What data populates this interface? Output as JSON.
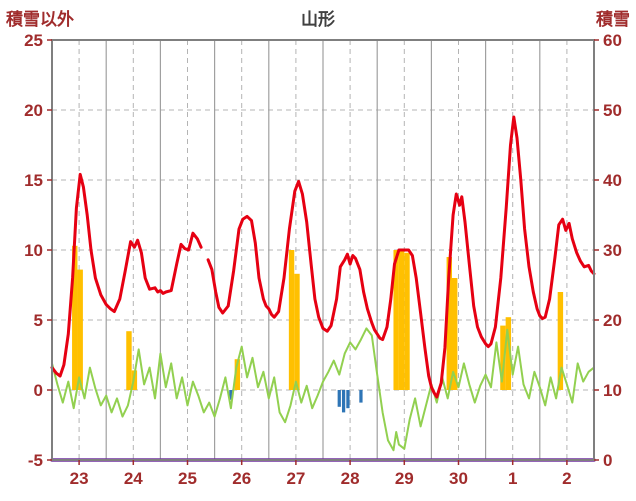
{
  "header": {
    "left_axis_title": "積雪以外",
    "title": "山形",
    "right_axis_title": "積雪"
  },
  "chart_data": {
    "type": "line",
    "title": "山形",
    "left_axis": {
      "label": "積雪以外",
      "min": -5,
      "max": 25,
      "step": 5,
      "ticks": [
        25,
        20,
        15,
        10,
        5,
        0,
        -5
      ]
    },
    "right_axis": {
      "label": "積雪",
      "min": 0,
      "max": 60,
      "step": 10,
      "ticks": [
        60,
        50,
        40,
        30,
        20,
        10,
        0
      ]
    },
    "x_axis": {
      "min": 0,
      "max": 10,
      "day_labels": [
        "23",
        "24",
        "25",
        "26",
        "27",
        "28",
        "29",
        "30",
        "1",
        "2"
      ]
    },
    "colors": {
      "axis_text": "#a02c2c",
      "title_text": "#404040",
      "border": "#7f7f7f",
      "grid_solid": "#a0a0a0",
      "grid_dashed": "#b4b4b4",
      "temperature": "#e60012",
      "wind": "#92d050",
      "sunshine": "#ffc000",
      "precipitation": "#2e75b6",
      "snow_depth": "#7030a0"
    },
    "series": [
      {
        "name": "sunshine",
        "type": "bar",
        "axis": "left",
        "color": "#ffc000",
        "bar_width_days": 0.1,
        "points": [
          [
            0.42,
            10.3
          ],
          [
            0.52,
            8.6
          ],
          [
            1.42,
            4.2
          ],
          [
            1.52,
            1.4
          ],
          [
            3.42,
            2.2
          ],
          [
            4.42,
            10.0
          ],
          [
            4.52,
            8.3
          ],
          [
            6.35,
            10.0
          ],
          [
            6.45,
            10.0
          ],
          [
            6.55,
            9.8
          ],
          [
            7.33,
            9.5
          ],
          [
            7.43,
            8.0
          ],
          [
            8.32,
            4.6
          ],
          [
            8.42,
            5.2
          ],
          [
            9.38,
            7.0
          ]
        ]
      },
      {
        "name": "precipitation",
        "type": "bar",
        "axis": "left",
        "color": "#2e75b6",
        "bar_width_days": 0.06,
        "points": [
          [
            3.3,
            -0.7
          ],
          [
            5.3,
            -1.2
          ],
          [
            5.38,
            -1.6
          ],
          [
            5.46,
            -1.3
          ],
          [
            5.7,
            -0.9
          ]
        ]
      },
      {
        "name": "wind",
        "type": "line",
        "axis": "left",
        "color": "#92d050",
        "width": 2,
        "points": [
          [
            0.0,
            1.9
          ],
          [
            0.1,
            0.4
          ],
          [
            0.2,
            -0.9
          ],
          [
            0.3,
            0.6
          ],
          [
            0.4,
            -1.3
          ],
          [
            0.5,
            0.9
          ],
          [
            0.6,
            -0.6
          ],
          [
            0.7,
            1.6
          ],
          [
            0.8,
            0.1
          ],
          [
            0.9,
            -1.1
          ],
          [
            1.0,
            -0.4
          ],
          [
            1.1,
            -1.6
          ],
          [
            1.2,
            -0.6
          ],
          [
            1.3,
            -1.9
          ],
          [
            1.4,
            -1.1
          ],
          [
            1.5,
            0.6
          ],
          [
            1.6,
            2.9
          ],
          [
            1.7,
            0.4
          ],
          [
            1.8,
            1.6
          ],
          [
            1.9,
            -0.6
          ],
          [
            2.0,
            2.6
          ],
          [
            2.1,
            0.2
          ],
          [
            2.2,
            1.9
          ],
          [
            2.3,
            -0.6
          ],
          [
            2.4,
            0.9
          ],
          [
            2.5,
            -1.1
          ],
          [
            2.6,
            0.6
          ],
          [
            2.7,
            -0.4
          ],
          [
            2.8,
            -1.6
          ],
          [
            2.9,
            -0.9
          ],
          [
            3.0,
            -1.9
          ],
          [
            3.1,
            -0.6
          ],
          [
            3.2,
            0.9
          ],
          [
            3.3,
            -1.3
          ],
          [
            3.4,
            1.6
          ],
          [
            3.5,
            3.1
          ],
          [
            3.6,
            0.9
          ],
          [
            3.7,
            2.3
          ],
          [
            3.8,
            0.2
          ],
          [
            3.9,
            1.3
          ],
          [
            4.0,
            -0.6
          ],
          [
            4.1,
            0.9
          ],
          [
            4.2,
            -1.6
          ],
          [
            4.3,
            -2.3
          ],
          [
            4.4,
            -1.1
          ],
          [
            4.5,
            0.6
          ],
          [
            4.6,
            -0.9
          ],
          [
            4.7,
            0.3
          ],
          [
            4.8,
            -1.3
          ],
          [
            4.9,
            -0.4
          ],
          [
            5.0,
            0.6
          ],
          [
            5.1,
            1.3
          ],
          [
            5.2,
            2.1
          ],
          [
            5.3,
            1.1
          ],
          [
            5.4,
            2.6
          ],
          [
            5.5,
            3.4
          ],
          [
            5.6,
            2.9
          ],
          [
            5.7,
            3.6
          ],
          [
            5.8,
            4.4
          ],
          [
            5.9,
            3.9
          ],
          [
            6.0,
            1.1
          ],
          [
            6.1,
            -1.6
          ],
          [
            6.2,
            -3.6
          ],
          [
            6.3,
            -4.3
          ],
          [
            6.35,
            -3.0
          ],
          [
            6.4,
            -3.9
          ],
          [
            6.5,
            -4.2
          ],
          [
            6.6,
            -2.1
          ],
          [
            6.7,
            -0.6
          ],
          [
            6.8,
            -2.6
          ],
          [
            6.9,
            -1.1
          ],
          [
            7.0,
            0.4
          ],
          [
            7.1,
            -0.9
          ],
          [
            7.2,
            0.9
          ],
          [
            7.3,
            -0.6
          ],
          [
            7.4,
            1.3
          ],
          [
            7.5,
            0.2
          ],
          [
            7.6,
            1.9
          ],
          [
            7.7,
            0.4
          ],
          [
            7.8,
            -0.9
          ],
          [
            7.9,
            0.3
          ],
          [
            8.0,
            1.1
          ],
          [
            8.1,
            0.2
          ],
          [
            8.2,
            3.4
          ],
          [
            8.3,
            0.6
          ],
          [
            8.4,
            4.3
          ],
          [
            8.5,
            1.1
          ],
          [
            8.6,
            3.1
          ],
          [
            8.7,
            0.4
          ],
          [
            8.8,
            -0.6
          ],
          [
            8.9,
            1.3
          ],
          [
            9.0,
            0.2
          ],
          [
            9.1,
            -1.1
          ],
          [
            9.2,
            0.9
          ],
          [
            9.3,
            -0.6
          ],
          [
            9.4,
            1.6
          ],
          [
            9.5,
            0.4
          ],
          [
            9.6,
            -0.9
          ],
          [
            9.7,
            1.9
          ],
          [
            9.8,
            0.6
          ],
          [
            9.9,
            1.3
          ],
          [
            10.0,
            1.6
          ]
        ]
      },
      {
        "name": "snow_depth",
        "type": "line",
        "axis": "right",
        "color": "#7030a0",
        "width": 3.5,
        "points": [
          [
            0,
            0
          ],
          [
            10,
            0
          ]
        ]
      },
      {
        "name": "temperature",
        "type": "line",
        "axis": "left",
        "color": "#e60012",
        "width": 3,
        "points": [
          [
            0.0,
            1.6
          ],
          [
            0.08,
            1.2
          ],
          [
            0.15,
            1.0
          ],
          [
            0.22,
            1.8
          ],
          [
            0.3,
            4.0
          ],
          [
            0.38,
            8.0
          ],
          [
            0.45,
            13.0
          ],
          [
            0.52,
            15.4
          ],
          [
            0.58,
            14.5
          ],
          [
            0.65,
            12.5
          ],
          [
            0.72,
            10.0
          ],
          [
            0.8,
            8.0
          ],
          [
            0.9,
            6.8
          ],
          [
            1.0,
            6.1
          ],
          [
            1.08,
            5.8
          ],
          [
            1.15,
            5.6
          ],
          [
            1.25,
            6.5
          ],
          [
            1.35,
            8.5
          ],
          [
            1.45,
            10.6
          ],
          [
            1.52,
            10.2
          ],
          [
            1.58,
            10.7
          ],
          [
            1.65,
            9.8
          ],
          [
            1.72,
            8.0
          ],
          [
            1.8,
            7.2
          ],
          [
            1.9,
            7.3
          ],
          [
            1.95,
            7.0
          ],
          [
            2.0,
            7.1
          ],
          [
            2.05,
            6.9
          ],
          [
            2.1,
            7.0
          ],
          [
            2.2,
            7.1
          ],
          [
            2.3,
            9.0
          ],
          [
            2.38,
            10.4
          ],
          [
            2.45,
            10.1
          ],
          [
            2.52,
            10.0
          ],
          [
            2.6,
            11.2
          ],
          [
            2.68,
            10.8
          ],
          [
            2.75,
            10.2
          ],
          [
            2.8,
            null
          ],
          [
            2.88,
            9.3
          ],
          [
            2.95,
            8.6
          ],
          [
            3.02,
            7.0
          ],
          [
            3.08,
            5.9
          ],
          [
            3.15,
            5.5
          ],
          [
            3.25,
            6.0
          ],
          [
            3.35,
            8.5
          ],
          [
            3.45,
            11.5
          ],
          [
            3.52,
            12.2
          ],
          [
            3.6,
            12.4
          ],
          [
            3.68,
            12.1
          ],
          [
            3.75,
            10.5
          ],
          [
            3.82,
            8.0
          ],
          [
            3.9,
            6.5
          ],
          [
            3.95,
            6.0
          ],
          [
            4.0,
            5.8
          ],
          [
            4.05,
            5.4
          ],
          [
            4.1,
            5.2
          ],
          [
            4.18,
            5.6
          ],
          [
            4.28,
            8.0
          ],
          [
            4.38,
            11.5
          ],
          [
            4.48,
            14.2
          ],
          [
            4.55,
            14.9
          ],
          [
            4.62,
            14.0
          ],
          [
            4.7,
            12.0
          ],
          [
            4.78,
            9.0
          ],
          [
            4.85,
            6.5
          ],
          [
            4.92,
            5.2
          ],
          [
            5.0,
            4.4
          ],
          [
            5.08,
            4.2
          ],
          [
            5.15,
            4.6
          ],
          [
            5.25,
            6.5
          ],
          [
            5.32,
            8.8
          ],
          [
            5.4,
            9.3
          ],
          [
            5.45,
            9.7
          ],
          [
            5.5,
            9.0
          ],
          [
            5.55,
            9.6
          ],
          [
            5.6,
            9.4
          ],
          [
            5.68,
            8.6
          ],
          [
            5.75,
            7.0
          ],
          [
            5.82,
            5.8
          ],
          [
            5.9,
            4.8
          ],
          [
            5.95,
            4.3
          ],
          [
            6.0,
            4.0
          ],
          [
            6.05,
            3.7
          ],
          [
            6.1,
            3.6
          ],
          [
            6.18,
            4.5
          ],
          [
            6.25,
            6.5
          ],
          [
            6.32,
            9.0
          ],
          [
            6.4,
            10.0
          ],
          [
            6.5,
            10.0
          ],
          [
            6.58,
            10.0
          ],
          [
            6.65,
            9.6
          ],
          [
            6.72,
            8.0
          ],
          [
            6.8,
            5.5
          ],
          [
            6.88,
            3.0
          ],
          [
            6.95,
            1.0
          ],
          [
            7.0,
            0.2
          ],
          [
            7.05,
            -0.2
          ],
          [
            7.1,
            -0.5
          ],
          [
            7.18,
            0.5
          ],
          [
            7.25,
            3.0
          ],
          [
            7.32,
            8.0
          ],
          [
            7.4,
            12.5
          ],
          [
            7.46,
            14.0
          ],
          [
            7.52,
            13.2
          ],
          [
            7.56,
            13.8
          ],
          [
            7.62,
            12.0
          ],
          [
            7.7,
            9.0
          ],
          [
            7.78,
            6.0
          ],
          [
            7.85,
            4.5
          ],
          [
            7.92,
            3.8
          ],
          [
            8.0,
            3.3
          ],
          [
            8.05,
            3.1
          ],
          [
            8.1,
            3.3
          ],
          [
            8.18,
            4.5
          ],
          [
            8.28,
            8.0
          ],
          [
            8.38,
            13.0
          ],
          [
            8.46,
            17.5
          ],
          [
            8.52,
            19.5
          ],
          [
            8.58,
            18.0
          ],
          [
            8.65,
            15.0
          ],
          [
            8.72,
            11.5
          ],
          [
            8.8,
            8.8
          ],
          [
            8.88,
            7.0
          ],
          [
            8.95,
            5.8
          ],
          [
            9.0,
            5.3
          ],
          [
            9.05,
            5.1
          ],
          [
            9.1,
            5.2
          ],
          [
            9.18,
            6.5
          ],
          [
            9.28,
            9.5
          ],
          [
            9.35,
            11.8
          ],
          [
            9.42,
            12.2
          ],
          [
            9.48,
            11.4
          ],
          [
            9.54,
            11.9
          ],
          [
            9.6,
            10.8
          ],
          [
            9.68,
            9.8
          ],
          [
            9.75,
            9.2
          ],
          [
            9.82,
            8.8
          ],
          [
            9.9,
            8.9
          ],
          [
            9.95,
            8.5
          ],
          [
            10.0,
            8.3
          ]
        ]
      }
    ]
  }
}
